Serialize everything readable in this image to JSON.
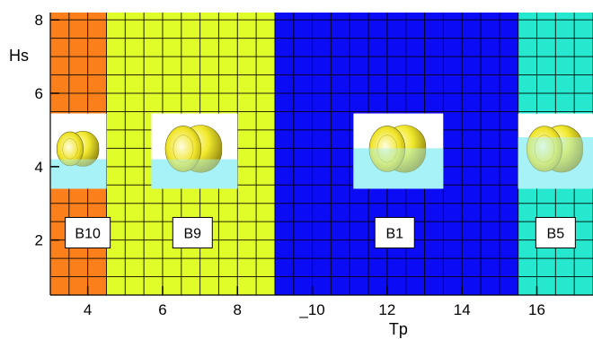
{
  "chart_data": {
    "type": "heatmap",
    "xlabel": "Tp",
    "ylabel": "Hs",
    "xlim": [
      3,
      17.5
    ],
    "ylim": [
      0.5,
      8.2
    ],
    "xticks": [
      4,
      6,
      8,
      10,
      12,
      14,
      16
    ],
    "xtick_labels": [
      "4",
      "6",
      "8",
      "_10",
      "12",
      "14",
      "16"
    ],
    "yticks": [
      2,
      4,
      6,
      8
    ],
    "ytick_labels": [
      "2",
      "4",
      "6",
      "8"
    ],
    "grid": true,
    "grid_dx": 0.5,
    "grid_dy": 0.5,
    "regions": [
      {
        "name": "B10",
        "x_range": [
          3.0,
          4.5
        ],
        "color": "#fb7f1b",
        "label_at": [
          4.0,
          2.2
        ]
      },
      {
        "name": "B9",
        "x_range": [
          4.5,
          9.0
        ],
        "color": "#e0fd2a",
        "label_at": [
          6.8,
          2.2
        ]
      },
      {
        "name": "B1",
        "x_range": [
          9.0,
          15.5
        ],
        "color": "#0b0bf6",
        "label_at": [
          12.2,
          2.2
        ]
      },
      {
        "name": "B5",
        "x_range": [
          15.5,
          17.5
        ],
        "color": "#25e8ce",
        "label_at": [
          16.5,
          2.2
        ]
      }
    ],
    "thumbnails": [
      {
        "region": "B10",
        "x_range": [
          3.0,
          4.5
        ],
        "y_range": [
          3.4,
          5.45
        ],
        "water_level": 4.2
      },
      {
        "region": "B9",
        "x_range": [
          5.7,
          8.0
        ],
        "y_range": [
          3.4,
          5.45
        ],
        "water_level": 4.2
      },
      {
        "region": "B1",
        "x_range": [
          11.1,
          13.5
        ],
        "y_range": [
          3.4,
          5.45
        ],
        "water_level": 4.5
      },
      {
        "region": "B5",
        "x_range": [
          15.5,
          17.5
        ],
        "y_range": [
          3.4,
          5.45
        ],
        "water_level": 4.8
      }
    ]
  }
}
